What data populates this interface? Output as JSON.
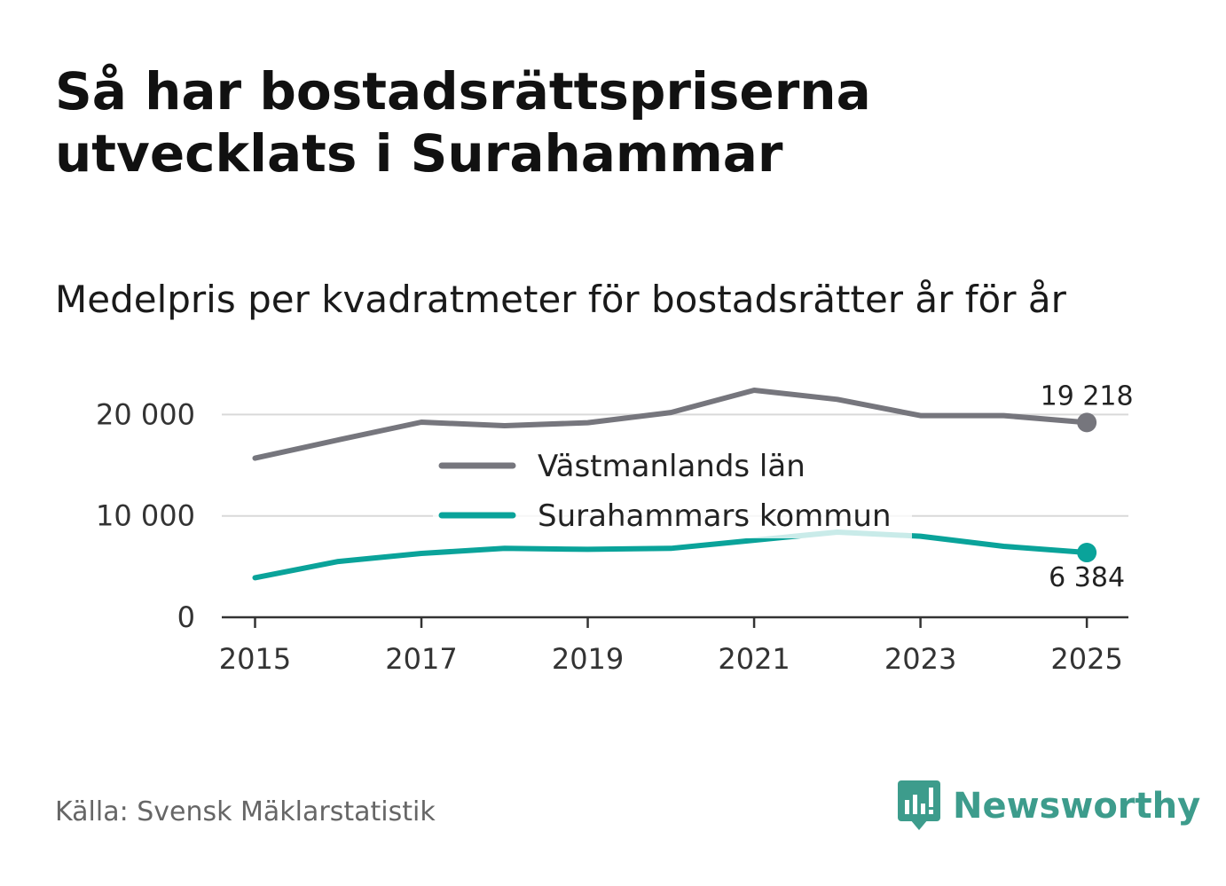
{
  "header": {
    "title": "Så har bostadsrättspriserna utvecklats i Surahammar",
    "subtitle": "Medelpris per kvadratmeter för bostadsrätter år för år"
  },
  "footer": {
    "source": "Källa: Svensk Mäklarstatistik",
    "brand": "Newsworthy"
  },
  "colors": {
    "series_lan": "#76767d",
    "series_kommun": "#0aa39a",
    "grid": "#d9d9d9",
    "axis": "#333333",
    "brand": "#3d9c8c"
  },
  "chart_data": {
    "type": "line",
    "title": "Medelpris per kvadratmeter för bostadsrätter år för år",
    "xlabel": "",
    "ylabel": "",
    "x": [
      2015,
      2016,
      2017,
      2018,
      2019,
      2020,
      2021,
      2022,
      2023,
      2024,
      2025
    ],
    "x_ticks": [
      "2015",
      "2017",
      "2019",
      "2021",
      "2023",
      "2025"
    ],
    "y_ticks": [
      {
        "value": 0,
        "label": "0"
      },
      {
        "value": 10000,
        "label": "10 000"
      },
      {
        "value": 20000,
        "label": "20 000"
      }
    ],
    "ylim": [
      0,
      22400
    ],
    "xlim": [
      2014.6,
      2025.5
    ],
    "grid": true,
    "legend_position": "center",
    "series": [
      {
        "name": "Västmanlands län",
        "color": "#76767d",
        "values": [
          15700,
          17500,
          19250,
          18900,
          19200,
          20200,
          22400,
          21500,
          19900,
          19900,
          19218
        ],
        "end_label": "19 218"
      },
      {
        "name": "Surahammars kommun",
        "color": "#0aa39a",
        "values": [
          3900,
          5500,
          6300,
          6800,
          6700,
          6800,
          7600,
          8400,
          8000,
          7000,
          6384
        ],
        "end_label": "6 384"
      }
    ]
  }
}
